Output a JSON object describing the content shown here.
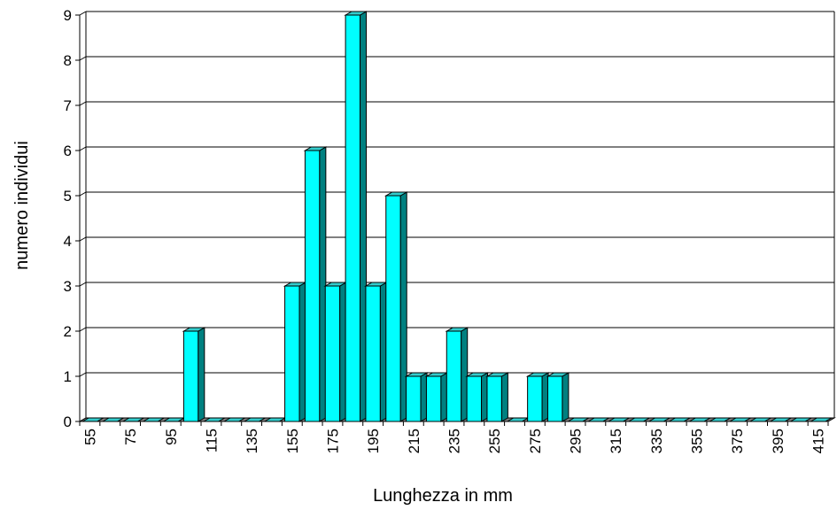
{
  "chart_data": {
    "type": "bar",
    "title": "",
    "xlabel": "Lunghezza in mm",
    "ylabel": "numero individui",
    "ylim": [
      0,
      9
    ],
    "y_ticks": [
      "0",
      "1",
      "2",
      "3",
      "4",
      "5",
      "6",
      "7",
      "8",
      "9"
    ],
    "grid": true,
    "legend": "none",
    "categories": [
      55,
      65,
      75,
      85,
      95,
      105,
      115,
      125,
      135,
      145,
      155,
      165,
      175,
      185,
      195,
      205,
      215,
      225,
      235,
      245,
      255,
      265,
      275,
      285,
      295,
      305,
      315,
      325,
      335,
      345,
      355,
      365,
      375,
      385,
      395,
      405,
      415
    ],
    "x_tick_labels": [
      "55",
      "75",
      "95",
      "115",
      "135",
      "155",
      "175",
      "195",
      "215",
      "235",
      "255",
      "275",
      "295",
      "315",
      "335",
      "355",
      "375",
      "395",
      "415"
    ],
    "values": [
      0,
      0,
      0,
      0,
      0,
      2,
      0,
      0,
      0,
      0,
      3,
      6,
      3,
      9,
      3,
      5,
      1,
      1,
      2,
      1,
      1,
      0,
      1,
      1,
      0,
      0,
      0,
      0,
      0,
      0,
      0,
      0,
      0,
      0,
      0,
      0,
      0
    ],
    "colors": {
      "bar_front": "#00ffff",
      "bar_side": "#008080",
      "bar_top": "#33cccc",
      "grid": "#000000",
      "floor": "#808080"
    }
  }
}
